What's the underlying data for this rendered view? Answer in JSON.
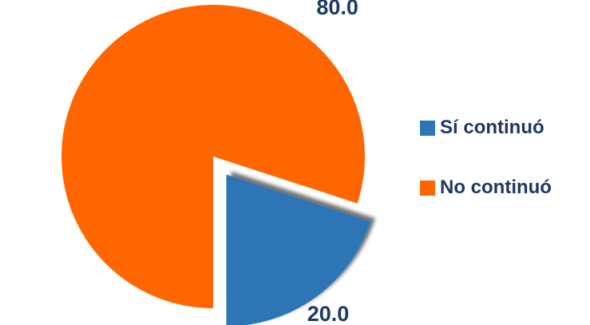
{
  "chart_data": {
    "type": "pie",
    "categories": [
      "Sí continuó",
      "No continuó"
    ],
    "values": [
      20.0,
      80.0
    ],
    "data_labels": [
      "20.0",
      "80.0"
    ],
    "colors": [
      "#2e75b6",
      "#ff6600"
    ],
    "exploded": "Sí continuó",
    "legend_position": "right"
  }
}
